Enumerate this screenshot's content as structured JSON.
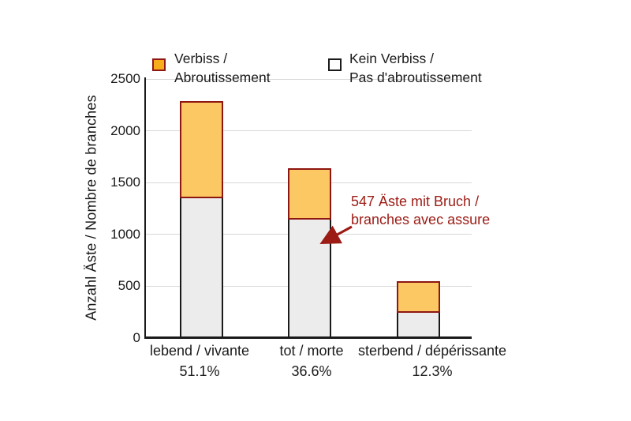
{
  "colors": {
    "bar_orange_fill": "#FBC863",
    "bar_orange_border": "#8E1712",
    "legend_orange_fill": "#F7AC1B",
    "bar_gray_fill": "#ECECED",
    "bar_gray_border": "#1a1a1a",
    "gridline": "#d8d8d8",
    "axis": "#1a1a1a",
    "annotation_red": "#9C1B15"
  },
  "legend": [
    {
      "line1": "Verbiss /",
      "line2": "Abroutissement",
      "swatch": "orange"
    },
    {
      "line1": "Kein Verbiss /",
      "line2": "Pas d'abroutissement",
      "swatch": "white"
    }
  ],
  "annotation": {
    "line1": "547 Äste mit Bruch /",
    "line2": "branches avec assure"
  },
  "chart_data": {
    "type": "bar",
    "stacked": true,
    "title": "",
    "ylabel": "Anzahl Äste / Nombre de branches",
    "xlabel": "",
    "ylim": [
      0,
      2500
    ],
    "yticks": [
      0,
      500,
      1000,
      1500,
      2000,
      2500
    ],
    "grid": true,
    "legend_position": "top",
    "categories": [
      "lebend / vivante",
      "tot / morte",
      "sterbend / dépérissante"
    ],
    "category_percents": [
      "51.1%",
      "36.6%",
      "12.3%"
    ],
    "series": [
      {
        "name": "Kein Verbiss / Pas d'abroutissement",
        "values": [
          1350,
          1140,
          245
        ]
      },
      {
        "name": "Verbiss / Abroutissement",
        "values": [
          935,
          500,
          305
        ]
      }
    ],
    "bar_totals": [
      2285,
      1640,
      550
    ],
    "annotation": "547 Äste mit Bruch / branches avec assure"
  }
}
